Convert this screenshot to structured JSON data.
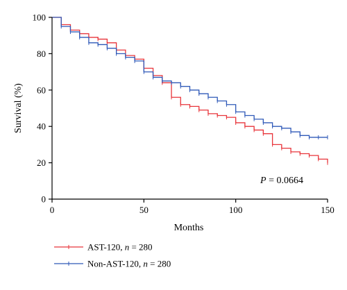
{
  "chart_data": {
    "type": "line",
    "step": true,
    "title": "",
    "xlabel": "Months",
    "ylabel": "Survival (%)",
    "xlim": [
      0,
      150
    ],
    "ylim": [
      0,
      100
    ],
    "xticks": [
      0,
      50,
      100,
      150
    ],
    "yticks": [
      0,
      20,
      40,
      60,
      80,
      100
    ],
    "grid": false,
    "legend_position": "bottom-left",
    "annotation": {
      "italic": "P",
      "text": " = 0.0664"
    },
    "series": [
      {
        "name": "AST-120, n = 280",
        "name_prefix": "AST-120, ",
        "name_italic": "n",
        "name_suffix": " = 280",
        "color": "#e8343a",
        "x": [
          0,
          5,
          10,
          15,
          20,
          25,
          30,
          35,
          40,
          45,
          50,
          55,
          60,
          65,
          70,
          75,
          80,
          85,
          90,
          95,
          100,
          105,
          110,
          115,
          120,
          125,
          130,
          135,
          140,
          145,
          150
        ],
        "y": [
          100,
          96,
          93,
          91,
          89,
          88,
          86,
          82,
          79,
          77,
          72,
          68,
          64,
          56,
          52,
          51,
          49,
          47,
          46,
          45,
          42,
          40,
          38,
          36,
          30,
          28,
          26,
          25,
          24,
          22,
          20
        ]
      },
      {
        "name": "Non-AST-120, n = 280",
        "name_prefix": "Non-AST-120, ",
        "name_italic": "n",
        "name_suffix": " = 280",
        "color": "#2f59b8",
        "x": [
          0,
          5,
          10,
          15,
          20,
          25,
          30,
          35,
          40,
          45,
          50,
          55,
          60,
          65,
          70,
          75,
          80,
          85,
          90,
          95,
          100,
          105,
          110,
          115,
          120,
          125,
          130,
          135,
          140,
          145,
          150
        ],
        "y": [
          100,
          95,
          92,
          89,
          86,
          85,
          83,
          80,
          78,
          76,
          70,
          67,
          65,
          64,
          62,
          60,
          58,
          56,
          54,
          52,
          48,
          46,
          44,
          42,
          40,
          39,
          37,
          35,
          34,
          34,
          34
        ]
      }
    ]
  }
}
